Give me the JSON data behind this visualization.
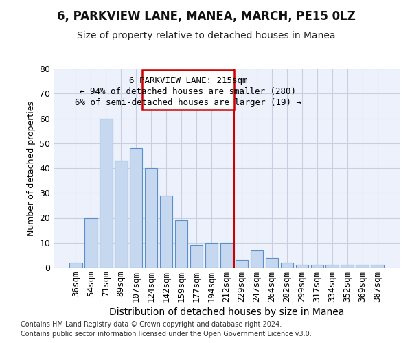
{
  "title": "6, PARKVIEW LANE, MANEA, MARCH, PE15 0LZ",
  "subtitle": "Size of property relative to detached houses in Manea",
  "xlabel": "Distribution of detached houses by size in Manea",
  "ylabel": "Number of detached properties",
  "categories": [
    "36sqm",
    "54sqm",
    "71sqm",
    "89sqm",
    "107sqm",
    "124sqm",
    "142sqm",
    "159sqm",
    "177sqm",
    "194sqm",
    "212sqm",
    "229sqm",
    "247sqm",
    "264sqm",
    "282sqm",
    "299sqm",
    "317sqm",
    "334sqm",
    "352sqm",
    "369sqm",
    "387sqm"
  ],
  "values": [
    2,
    20,
    60,
    43,
    48,
    40,
    29,
    19,
    9,
    10,
    10,
    3,
    7,
    4,
    2,
    1,
    1,
    1,
    1,
    1,
    1
  ],
  "bar_color": "#c5d8f0",
  "bar_edge_color": "#5b8fc9",
  "bar_width": 0.85,
  "ylim": [
    0,
    80
  ],
  "yticks": [
    0,
    10,
    20,
    30,
    40,
    50,
    60,
    70,
    80
  ],
  "property_label": "6 PARKVIEW LANE: 215sqm",
  "pct_smaller": "← 94% of detached houses are smaller (280)",
  "pct_larger": "6% of semi-detached houses are larger (19) →",
  "vline_color": "#cc0000",
  "annotation_box_color": "#cc0000",
  "grid_color": "#c8cfe0",
  "background_color": "#edf1fb",
  "footer1": "Contains HM Land Registry data © Crown copyright and database right 2024.",
  "footer2": "Contains public sector information licensed under the Open Government Licence v3.0.",
  "title_fontsize": 12,
  "subtitle_fontsize": 10,
  "xlabel_fontsize": 10,
  "ylabel_fontsize": 9,
  "tick_fontsize": 9,
  "annotation_fontsize": 9,
  "footer_fontsize": 7
}
